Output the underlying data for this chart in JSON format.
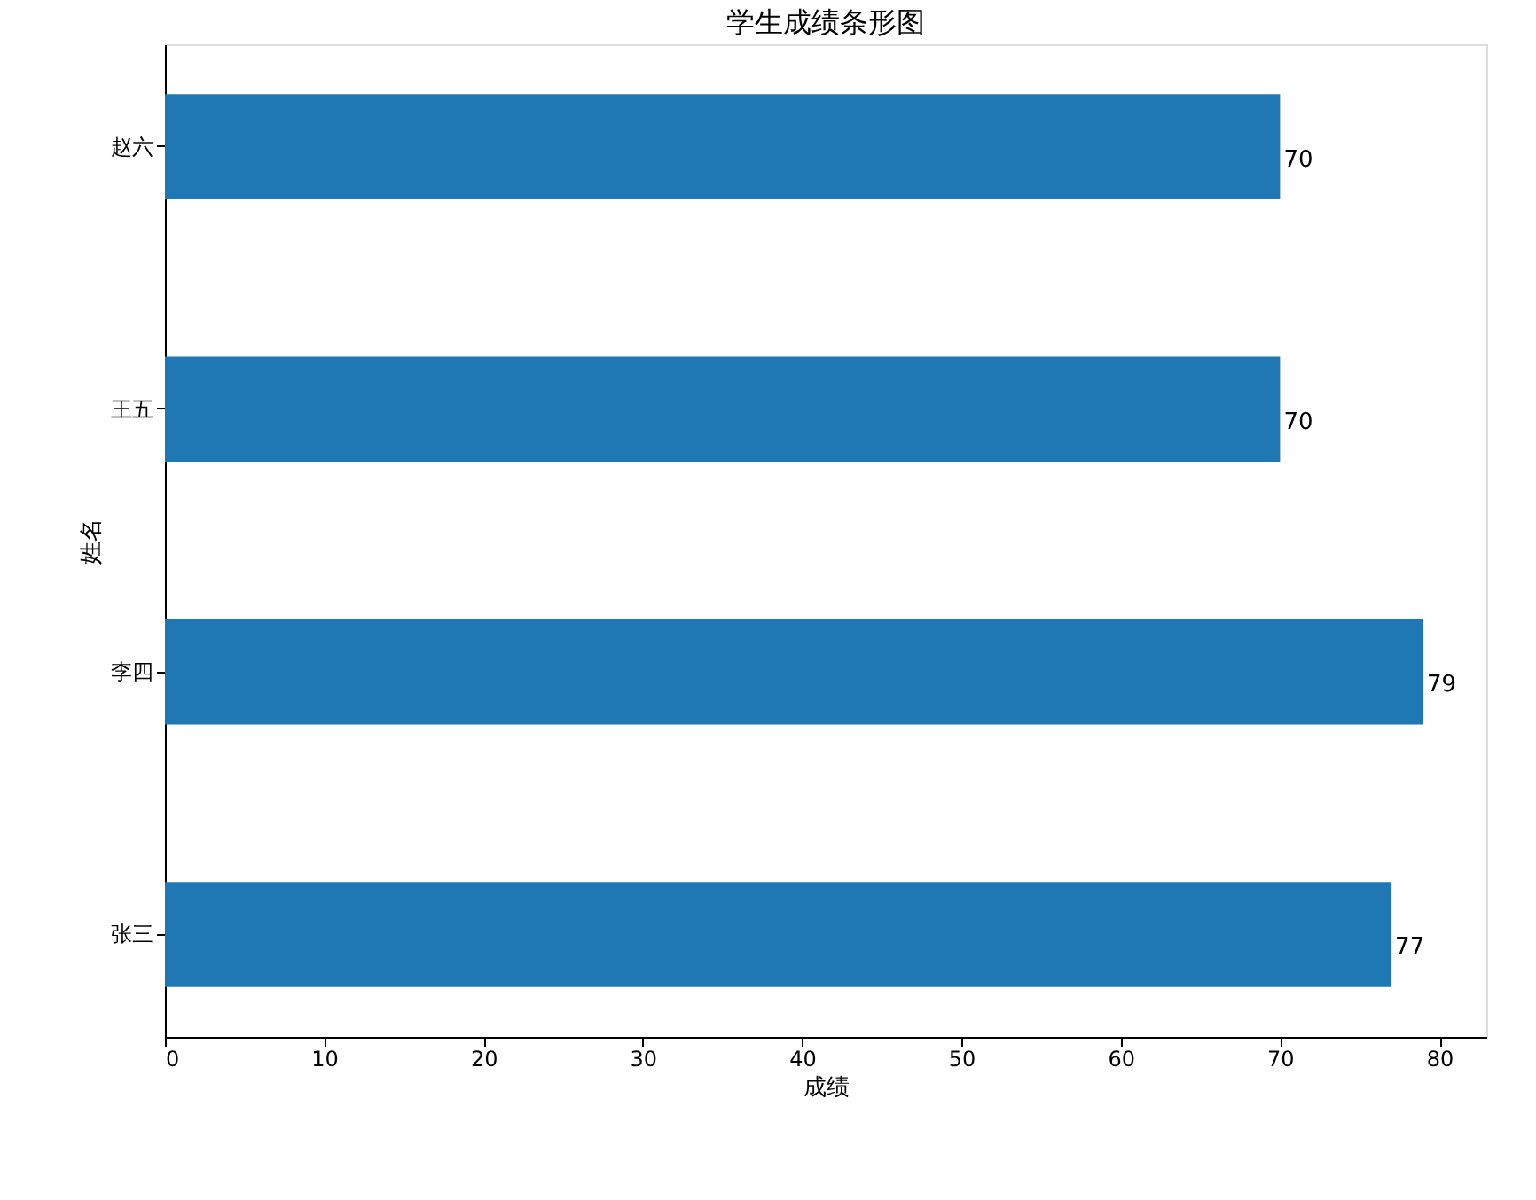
{
  "chart_data": {
    "type": "bar",
    "orientation": "horizontal",
    "title": "学生成绩条形图",
    "xlabel": "成绩",
    "ylabel": "姓名",
    "categories": [
      "赵六",
      "王五",
      "李四",
      "张三"
    ],
    "values": [
      70,
      70,
      79,
      77
    ],
    "color": "#1f77b4",
    "xlim": [
      0,
      82.95
    ],
    "xticks": [
      0,
      10,
      20,
      30,
      40,
      50,
      60,
      70,
      80
    ],
    "data_labels": true,
    "grid": false
  }
}
